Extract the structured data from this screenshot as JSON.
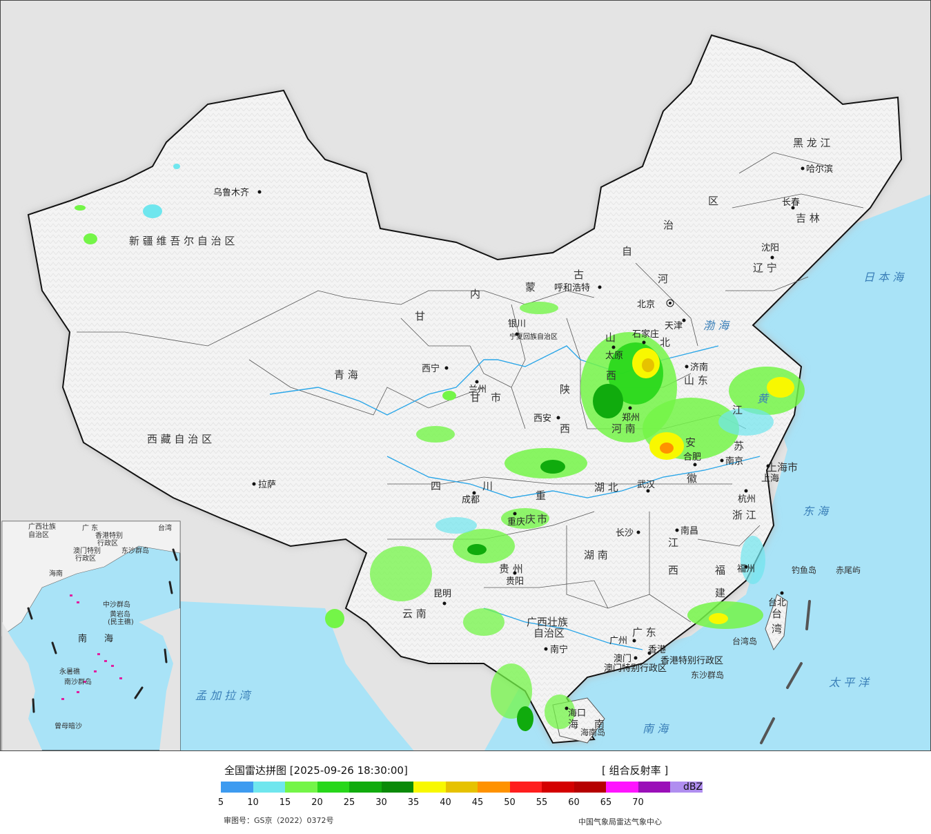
{
  "map": {
    "title": "全国雷达拼图",
    "timestamp": "[2025-09-26 18:30:00]",
    "product": "[ 组合反射率 ]",
    "unit": "dBZ",
    "approval": "审图号：GS京（2022）0372号",
    "publisher": "中国气象局雷达气象中心"
  },
  "legend": {
    "colors": [
      "#3d9bf0",
      "#6fe6ee",
      "#74f548",
      "#27d71a",
      "#10ab0d",
      "#0a8a08",
      "#f8f800",
      "#e6c200",
      "#ff9200",
      "#ff1e1e",
      "#d40000",
      "#b60000",
      "#ff14ff",
      "#9a0fb8",
      "#b08ef0"
    ],
    "ticks": [
      "5",
      "10",
      "15",
      "20",
      "25",
      "30",
      "35",
      "40",
      "45",
      "50",
      "55",
      "60",
      "65",
      "70"
    ]
  },
  "provinces": [
    {
      "name": "新 疆 维 吾 尔 自 治 区"
    },
    {
      "name": "西 藏 自 治 区"
    },
    {
      "name": "青  海"
    },
    {
      "name": "甘"
    },
    {
      "name": "内"
    },
    {
      "name": "蒙"
    },
    {
      "name": "古"
    },
    {
      "name": "自"
    },
    {
      "name": "治"
    },
    {
      "name": "区"
    },
    {
      "name": "黑 龙 江"
    },
    {
      "name": "吉 林"
    },
    {
      "name": "辽 宁"
    },
    {
      "name": "河"
    },
    {
      "name": "北"
    },
    {
      "name": "山"
    },
    {
      "name": "西"
    },
    {
      "name": "山 东"
    },
    {
      "name": "陕"
    },
    {
      "name": "西"
    },
    {
      "name": "河 南"
    },
    {
      "name": "江"
    },
    {
      "name": "苏"
    },
    {
      "name": "安"
    },
    {
      "name": "徽"
    },
    {
      "name": "四"
    },
    {
      "name": "川"
    },
    {
      "name": "重"
    },
    {
      "name": "庆"
    },
    {
      "name": "市"
    },
    {
      "name": "湖 北"
    },
    {
      "name": "湖 南"
    },
    {
      "name": "江"
    },
    {
      "name": "西"
    },
    {
      "name": "浙 江"
    },
    {
      "name": "福"
    },
    {
      "name": "建"
    },
    {
      "name": "贵 州"
    },
    {
      "name": "云 南"
    },
    {
      "name": "广西壮族"
    },
    {
      "name": "自治区"
    },
    {
      "name": "广 东"
    },
    {
      "name": "上海市"
    },
    {
      "name": "台"
    },
    {
      "name": "湾"
    },
    {
      "name": "海"
    },
    {
      "name": "南"
    },
    {
      "name": "宁夏回族自治区"
    },
    {
      "name": "甘"
    },
    {
      "name": "市"
    }
  ],
  "cities": [
    {
      "name": "乌鲁木齐"
    },
    {
      "name": "拉萨"
    },
    {
      "name": "西宁"
    },
    {
      "name": "兰州"
    },
    {
      "name": "银川"
    },
    {
      "name": "呼和浩特"
    },
    {
      "name": "北京"
    },
    {
      "name": "天津"
    },
    {
      "name": "石家庄"
    },
    {
      "name": "太原"
    },
    {
      "name": "济南"
    },
    {
      "name": "郑州"
    },
    {
      "name": "西安"
    },
    {
      "name": "合肥"
    },
    {
      "name": "南京"
    },
    {
      "name": "上海"
    },
    {
      "name": "杭州"
    },
    {
      "name": "武汉"
    },
    {
      "name": "成都"
    },
    {
      "name": "重庆"
    },
    {
      "name": "长沙"
    },
    {
      "name": "南昌"
    },
    {
      "name": "福州"
    },
    {
      "name": "台北"
    },
    {
      "name": "贵阳"
    },
    {
      "name": "昆明"
    },
    {
      "name": "南宁"
    },
    {
      "name": "广州"
    },
    {
      "name": "香港"
    },
    {
      "name": "澳门"
    },
    {
      "name": "海口"
    },
    {
      "name": "哈尔滨"
    },
    {
      "name": "长春"
    },
    {
      "name": "沈阳"
    }
  ],
  "seas": [
    {
      "name": "日 本 海"
    },
    {
      "name": "渤 海"
    },
    {
      "name": "黄"
    },
    {
      "name": "东 海"
    },
    {
      "name": "太  平  洋"
    },
    {
      "name": "南   海"
    },
    {
      "name": "孟 加 拉 湾"
    },
    {
      "name": "南  海"
    }
  ],
  "islands": [
    {
      "name": "钓鱼岛"
    },
    {
      "name": "赤尾屿"
    },
    {
      "name": "台湾岛"
    },
    {
      "name": "东沙群岛"
    },
    {
      "name": "海南岛"
    },
    {
      "name": "香港特别行政区"
    },
    {
      "name": "澳门特别行政区"
    }
  ],
  "inset": {
    "labels": [
      "广西壮族",
      "自治区",
      "广  东",
      "台湾",
      "香港特别",
      "行政区",
      "澳门特别",
      "行政区",
      "东沙群岛",
      "海南",
      "中沙群岛",
      "黄岩岛",
      "(民主礁)",
      "南",
      "海",
      "永暑礁",
      "南沙群岛",
      "曾母暗沙"
    ]
  }
}
